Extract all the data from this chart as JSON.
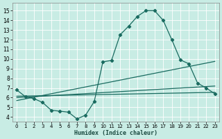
{
  "xlabel": "Humidex (Indice chaleur)",
  "bg_color": "#c8ece4",
  "grid_color": "#b0d8d0",
  "line_color": "#1a6b60",
  "xlim": [
    -0.5,
    23.5
  ],
  "ylim": [
    3.5,
    15.8
  ],
  "xtick_labels": [
    "0",
    "1",
    "2",
    "3",
    "4",
    "5",
    "6",
    "7",
    "8",
    "9",
    "10",
    "11",
    "12",
    "13",
    "14",
    "15",
    "16",
    "17",
    "18",
    "19",
    "20",
    "21",
    "22",
    "23"
  ],
  "ytick_labels": [
    "4",
    "5",
    "6",
    "7",
    "8",
    "9",
    "10",
    "11",
    "12",
    "13",
    "14",
    "15"
  ],
  "xticks": [
    0,
    1,
    2,
    3,
    4,
    5,
    6,
    7,
    8,
    9,
    10,
    11,
    12,
    13,
    14,
    15,
    16,
    17,
    18,
    19,
    20,
    21,
    22,
    23
  ],
  "yticks": [
    4,
    5,
    6,
    7,
    8,
    9,
    10,
    11,
    12,
    13,
    14,
    15
  ],
  "curve_x": [
    0,
    1,
    2,
    3,
    4,
    5,
    6,
    7,
    8,
    9,
    10,
    11,
    12,
    13,
    14,
    15,
    16,
    17,
    18,
    19,
    20,
    21,
    22,
    23
  ],
  "curve_y": [
    6.8,
    6.1,
    5.9,
    5.5,
    4.7,
    4.6,
    4.5,
    3.8,
    4.2,
    5.6,
    9.7,
    9.85,
    12.5,
    13.4,
    14.4,
    15.0,
    15.0,
    14.0,
    12.0,
    9.9,
    9.5,
    7.5,
    7.0,
    6.4
  ],
  "line2_x": [
    0,
    23
  ],
  "line2_y": [
    6.15,
    6.55
  ],
  "line3_x": [
    0,
    23
  ],
  "line3_y": [
    5.7,
    9.75
  ],
  "line4_x": [
    0,
    23
  ],
  "line4_y": [
    6.0,
    7.2
  ],
  "linewidth": 0.9,
  "markersize": 2.2
}
